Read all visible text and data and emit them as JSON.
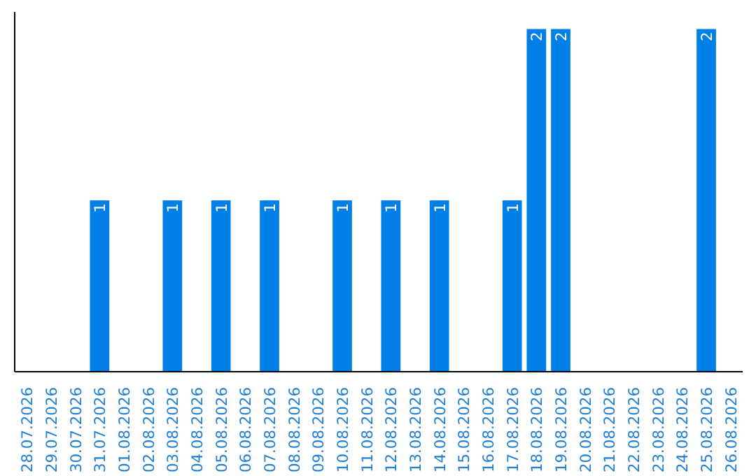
{
  "chart_data": {
    "type": "bar",
    "categories": [
      "28.07.2026",
      "29.07.2026",
      "30.07.2026",
      "31.07.2026",
      "01.08.2026",
      "02.08.2026",
      "03.08.2026",
      "04.08.2026",
      "05.08.2026",
      "06.08.2026",
      "07.08.2026",
      "08.08.2026",
      "09.08.2026",
      "10.08.2026",
      "11.08.2026",
      "12.08.2026",
      "13.08.2026",
      "14.08.2026",
      "15.08.2026",
      "16.08.2026",
      "17.08.2026",
      "18.08.2026",
      "19.08.2026",
      "20.08.2026",
      "21.08.2026",
      "22.08.2026",
      "23.08.2026",
      "24.08.2026",
      "25.08.2026",
      "26.08.2026"
    ],
    "values": [
      0,
      0,
      0,
      1,
      0,
      0,
      1,
      0,
      1,
      0,
      1,
      0,
      0,
      1,
      0,
      1,
      0,
      1,
      0,
      0,
      1,
      2,
      2,
      0,
      0,
      0,
      0,
      0,
      2,
      0
    ],
    "value_labels": [
      null,
      null,
      null,
      "1",
      null,
      null,
      "1",
      null,
      "1",
      null,
      "1",
      null,
      null,
      "1",
      null,
      "1",
      null,
      "1",
      null,
      null,
      "1",
      "2",
      "2",
      null,
      null,
      null,
      null,
      null,
      "2",
      null
    ],
    "color": "#007fe6",
    "ylim": [
      0,
      2.1
    ],
    "tick_labels": "x",
    "grid": false
  }
}
